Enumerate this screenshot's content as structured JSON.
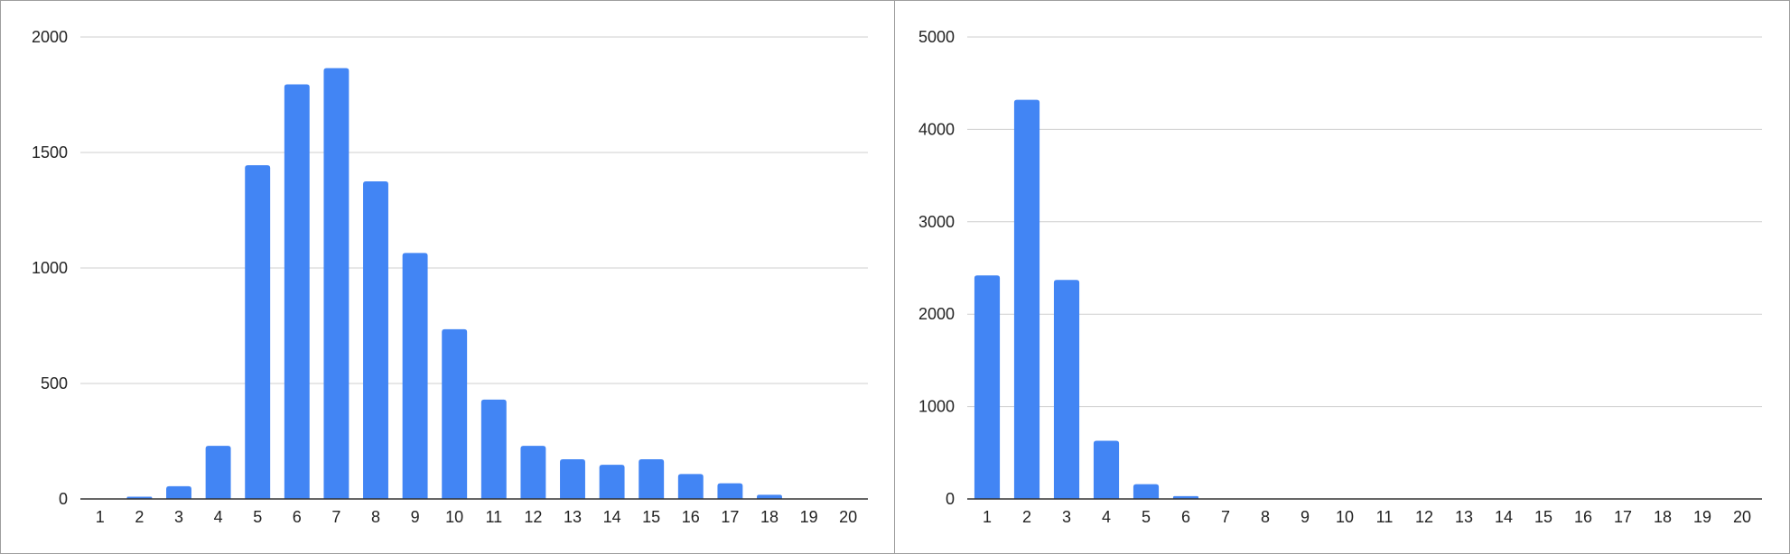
{
  "chart_data": [
    {
      "type": "bar",
      "categories": [
        "1",
        "2",
        "3",
        "4",
        "5",
        "6",
        "7",
        "8",
        "9",
        "10",
        "11",
        "12",
        "13",
        "14",
        "15",
        "16",
        "17",
        "18",
        "19",
        "20"
      ],
      "values": [
        0,
        10,
        55,
        230,
        1445,
        1795,
        1865,
        1375,
        1065,
        735,
        430,
        230,
        172,
        148,
        172,
        108,
        68,
        18,
        0,
        0
      ],
      "ylim": [
        0,
        2000
      ],
      "yticks": [
        0,
        500,
        1000,
        1500,
        2000
      ],
      "grid": true,
      "color": "#4285f4"
    },
    {
      "type": "bar",
      "categories": [
        "1",
        "2",
        "3",
        "4",
        "5",
        "6",
        "7",
        "8",
        "9",
        "10",
        "11",
        "12",
        "13",
        "14",
        "15",
        "16",
        "17",
        "18",
        "19",
        "20"
      ],
      "values": [
        2420,
        4320,
        2370,
        630,
        160,
        30,
        0,
        0,
        0,
        0,
        0,
        0,
        0,
        0,
        0,
        0,
        0,
        0,
        0,
        0
      ],
      "ylim": [
        0,
        5000
      ],
      "yticks": [
        0,
        1000,
        2000,
        3000,
        4000,
        5000
      ],
      "grid": true,
      "color": "#4285f4"
    }
  ]
}
